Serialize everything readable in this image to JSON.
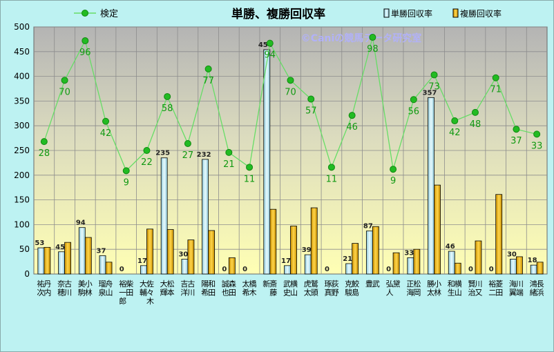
{
  "chart_data": {
    "type": "bar",
    "title": "単勝、複勝回収率",
    "watermark": "©Caniの競馬データ研究室",
    "ylim": [
      0,
      500
    ],
    "yticks": [
      0,
      50,
      100,
      150,
      200,
      250,
      300,
      350,
      400,
      450,
      500
    ],
    "grid": true,
    "legend_placement": "top",
    "categories": [
      "丹内 祐次",
      "古川 奈穂",
      "小林 美駒",
      "舟山 瑠泉",
      "柴田 裕一郎",
      "佐々木 大輔",
      "松本 大輝",
      "古川 吉洋",
      "和田 陽希",
      "森田 誠也",
      "橋木 太希",
      "斎藤 新",
      "横山 武史",
      "鷲頭 虎太",
      "荻野 琢真",
      "鮫島 克駿",
      "武 豊",
      "黛 弘人",
      "松岡 正海",
      "小林 勝太",
      "横山 和生",
      "川又 賢治",
      "菱田 裕二",
      "川端 海翼",
      "長浜 鴻緒"
    ],
    "series": [
      {
        "name": "単勝回収率",
        "color": "#c8ecf4",
        "values": [
          53,
          45,
          94,
          37,
          0,
          17,
          235,
          30,
          232,
          0,
          0,
          454,
          17,
          39,
          0,
          21,
          87,
          0,
          33,
          357,
          46,
          0,
          0,
          30,
          18
        ]
      },
      {
        "name": "複勝回収率",
        "color": "#f0b800",
        "values": [
          54,
          64,
          74,
          24,
          0,
          91,
          90,
          69,
          88,
          33,
          0,
          131,
          97,
          134,
          0,
          62,
          96,
          43,
          50,
          180,
          22,
          67,
          161,
          35,
          24
        ]
      },
      {
        "name": "検定",
        "color": "#22bb22",
        "values": [
          268,
          392,
          472,
          309,
          209,
          250,
          359,
          264,
          415,
          246,
          216,
          467,
          392,
          354,
          216,
          321,
          479,
          212,
          353,
          403,
          310,
          327,
          397,
          293,
          283
        ],
        "labels": [
          "28",
          "70",
          "96",
          "42",
          "9",
          "22",
          "58",
          "27",
          "77",
          "21",
          "11",
          "94",
          "70",
          "57",
          "11",
          "46",
          "98",
          "9",
          "56",
          "73",
          "42",
          "48",
          "71",
          "37",
          "33"
        ]
      }
    ],
    "bar_labels": [
      "53",
      "45",
      "94",
      "37",
      "0",
      "17",
      "235",
      "30",
      "232",
      "0",
      "0",
      "454",
      "17",
      "39",
      "0",
      "21",
      "87",
      "0",
      "33",
      "357",
      "46",
      "0",
      "0",
      "30",
      "18"
    ]
  }
}
